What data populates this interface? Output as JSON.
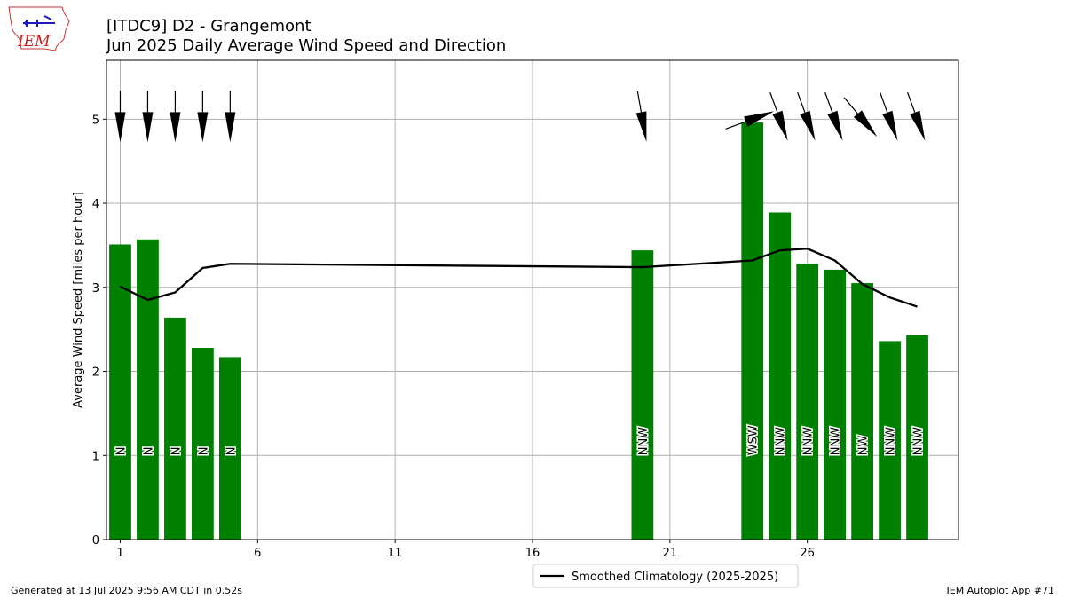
{
  "logo": {
    "text": "IEM"
  },
  "header": {
    "title_line1": "[ITDC9] D2 - Grangemont",
    "title_line2": "Jun 2025 Daily Average Wind Speed and Direction"
  },
  "footer": {
    "left": "Generated at 13 Jul 2025 9:56 AM CDT in 0.52s",
    "right": "IEM Autoplot App #71"
  },
  "colors": {
    "bar": "#008000",
    "line": "#000000",
    "grid": "#b0b0b0"
  },
  "chart_data": {
    "type": "bar",
    "ylabel": "Average Wind Speed [miles per hour]",
    "xlabel": "",
    "ylim": [
      0,
      5.7
    ],
    "xlim": [
      0.5,
      31.5
    ],
    "grid": true,
    "legend_position": "bottom-center",
    "xticks": [
      1,
      6,
      11,
      16,
      21,
      26
    ],
    "yticks": [
      0,
      1,
      2,
      3,
      4,
      5
    ],
    "days": [
      1,
      2,
      3,
      4,
      5,
      20,
      24,
      25,
      26,
      27,
      28,
      29,
      30
    ],
    "values": [
      3.51,
      3.57,
      2.64,
      2.28,
      2.17,
      3.44,
      4.96,
      3.89,
      3.28,
      3.21,
      3.05,
      2.36,
      2.43
    ],
    "directions": [
      "N",
      "N",
      "N",
      "N",
      "N",
      "NNW",
      "WSW",
      "NNW",
      "NNW",
      "NNW",
      "NW",
      "NNW",
      "NNW"
    ],
    "wind_bearing_deg": [
      0,
      0,
      0,
      0,
      0,
      350,
      250,
      340,
      340,
      340,
      320,
      340,
      340
    ],
    "line_series": {
      "name": "Smoothed Climatology (2025-2025)",
      "x": [
        1,
        2,
        3,
        4,
        5,
        20,
        24,
        25,
        26,
        27,
        28,
        29,
        30
      ],
      "values": [
        3.01,
        2.85,
        2.94,
        3.23,
        3.28,
        3.24,
        3.32,
        3.44,
        3.46,
        3.32,
        3.04,
        2.88,
        2.77
      ]
    }
  }
}
